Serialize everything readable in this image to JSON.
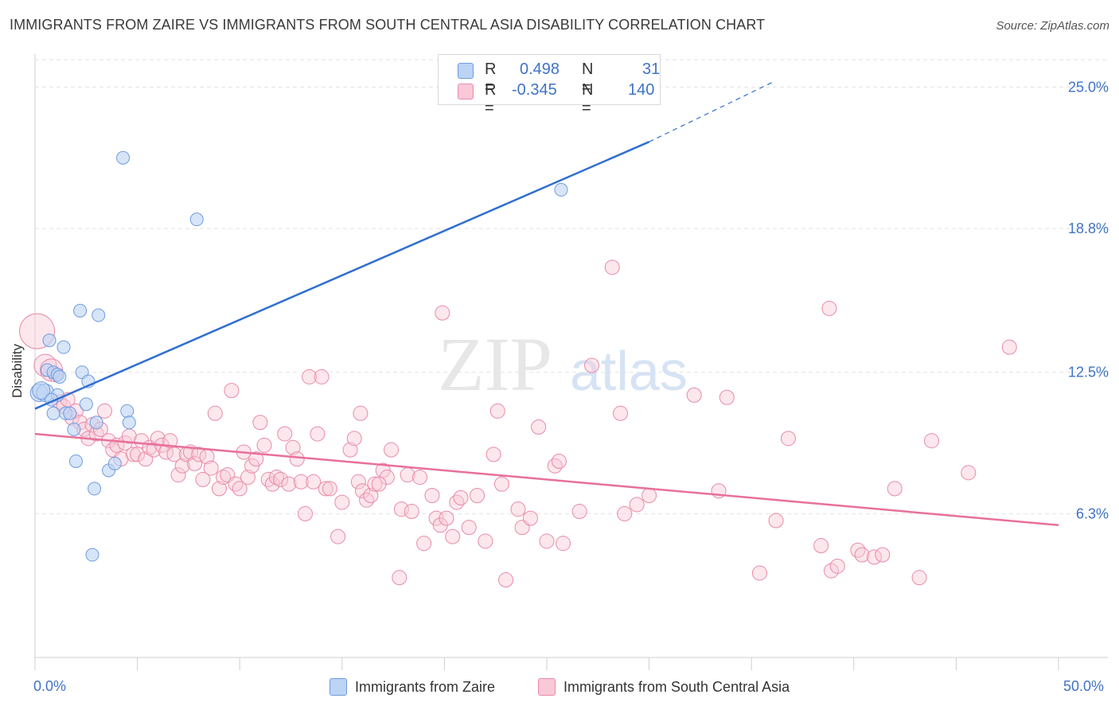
{
  "header": {
    "title": "IMMIGRANTS FROM ZAIRE VS IMMIGRANTS FROM SOUTH CENTRAL ASIA DISABILITY CORRELATION CHART",
    "source": "Source: ZipAtlas.com"
  },
  "watermark": {
    "zip": "ZIP",
    "atlas": "atlas"
  },
  "legend": {
    "r_label": "R =",
    "n_label": "N =",
    "series": [
      {
        "name": "Immigrants from Zaire",
        "r": "0.498",
        "n": "31",
        "fill": "#bcd4f4",
        "stroke": "#6f9be0"
      },
      {
        "name": "Immigrants from South Central Asia",
        "r": "-0.345",
        "n": "140",
        "fill": "#f9c9d7",
        "stroke": "#e88aa8"
      }
    ]
  },
  "colors": {
    "blue_line": "#2f6fd0",
    "pink_line": "#e8709a",
    "tick_label": "#3f73c6",
    "grid": "#e2e2e2"
  },
  "chart_data": {
    "type": "scatter",
    "title": "IMMIGRANTS FROM ZAIRE VS IMMIGRANTS FROM SOUTH CENTRAL ASIA DISABILITY CORRELATION CHART",
    "xlabel": "",
    "ylabel": "Disability",
    "xlim": [
      0,
      50
    ],
    "ylim": [
      0,
      26.2
    ],
    "x_tick_labels": [
      "0.0%",
      "50.0%"
    ],
    "y_ticks": [
      6.3,
      12.5,
      18.8,
      25.0
    ],
    "y_tick_labels": [
      "6.3%",
      "12.5%",
      "18.8%",
      "25.0%"
    ],
    "grid": true,
    "legend_position": "top-center",
    "series": [
      {
        "name": "Immigrants from Zaire",
        "r": 0.498,
        "n": 31,
        "trend": {
          "x0": 0,
          "y0": 10.9,
          "x1": 30,
          "y1": 22.6,
          "dash_x1": 36,
          "dash_y1": 25.2
        },
        "points": [
          [
            0.2,
            11.6
          ],
          [
            0.5,
            11.6
          ],
          [
            0.6,
            12.6
          ],
          [
            0.7,
            13.9
          ],
          [
            0.9,
            10.7
          ],
          [
            0.9,
            12.5
          ],
          [
            1.1,
            11.5
          ],
          [
            1.1,
            12.4
          ],
          [
            1.2,
            12.3
          ],
          [
            1.4,
            13.6
          ],
          [
            1.5,
            10.7
          ],
          [
            1.7,
            10.7
          ],
          [
            1.9,
            10.0
          ],
          [
            2.0,
            8.6
          ],
          [
            2.2,
            15.2
          ],
          [
            2.3,
            12.5
          ],
          [
            2.5,
            11.1
          ],
          [
            2.6,
            12.1
          ],
          [
            2.8,
            4.5
          ],
          [
            2.9,
            7.4
          ],
          [
            3.0,
            10.3
          ],
          [
            3.1,
            15.0
          ],
          [
            3.6,
            8.2
          ],
          [
            3.9,
            8.5
          ],
          [
            4.3,
            21.9
          ],
          [
            4.5,
            10.8
          ],
          [
            4.6,
            10.3
          ],
          [
            7.9,
            19.2
          ],
          [
            0.3,
            11.7
          ],
          [
            0.8,
            11.3
          ],
          [
            25.7,
            20.5
          ]
        ]
      },
      {
        "name": "Immigrants from South Central Asia",
        "r": -0.345,
        "n": 140,
        "trend": {
          "x0": 0,
          "y0": 9.8,
          "x1": 50,
          "y1": 5.8
        },
        "points": [
          [
            0.1,
            14.3
          ],
          [
            0.5,
            12.8
          ],
          [
            0.8,
            12.6
          ],
          [
            1.0,
            12.4
          ],
          [
            1.2,
            11.2
          ],
          [
            1.4,
            11.0
          ],
          [
            1.6,
            11.3
          ],
          [
            1.8,
            10.5
          ],
          [
            2.0,
            10.8
          ],
          [
            2.2,
            10.3
          ],
          [
            2.4,
            10.0
          ],
          [
            2.6,
            9.6
          ],
          [
            2.8,
            10.2
          ],
          [
            3.0,
            9.8
          ],
          [
            3.2,
            10.0
          ],
          [
            3.4,
            10.8
          ],
          [
            3.6,
            9.5
          ],
          [
            3.8,
            9.1
          ],
          [
            4.0,
            9.3
          ],
          [
            4.2,
            8.7
          ],
          [
            4.4,
            9.4
          ],
          [
            4.6,
            9.7
          ],
          [
            4.8,
            8.9
          ],
          [
            5.0,
            8.9
          ],
          [
            5.2,
            9.5
          ],
          [
            5.4,
            8.7
          ],
          [
            5.6,
            9.2
          ],
          [
            5.8,
            9.1
          ],
          [
            6.0,
            9.6
          ],
          [
            6.2,
            9.3
          ],
          [
            6.4,
            9.0
          ],
          [
            6.6,
            9.5
          ],
          [
            6.8,
            8.9
          ],
          [
            7.0,
            8.0
          ],
          [
            7.2,
            8.4
          ],
          [
            7.4,
            8.9
          ],
          [
            7.6,
            9.0
          ],
          [
            7.8,
            8.5
          ],
          [
            8.0,
            8.9
          ],
          [
            8.2,
            7.8
          ],
          [
            8.4,
            8.8
          ],
          [
            8.6,
            8.3
          ],
          [
            8.8,
            10.7
          ],
          [
            9.0,
            7.4
          ],
          [
            9.2,
            7.9
          ],
          [
            9.4,
            8.0
          ],
          [
            9.6,
            11.7
          ],
          [
            9.8,
            7.6
          ],
          [
            10.0,
            7.4
          ],
          [
            10.2,
            9.0
          ],
          [
            10.4,
            7.9
          ],
          [
            10.6,
            8.4
          ],
          [
            10.8,
            8.7
          ],
          [
            11.0,
            10.3
          ],
          [
            11.2,
            9.3
          ],
          [
            11.4,
            7.8
          ],
          [
            11.6,
            7.6
          ],
          [
            11.8,
            7.9
          ],
          [
            12.0,
            7.8
          ],
          [
            12.2,
            9.8
          ],
          [
            12.4,
            7.6
          ],
          [
            12.6,
            9.2
          ],
          [
            12.8,
            8.7
          ],
          [
            13.0,
            7.7
          ],
          [
            13.2,
            6.3
          ],
          [
            13.4,
            12.3
          ],
          [
            13.6,
            7.7
          ],
          [
            13.8,
            9.8
          ],
          [
            14.0,
            12.3
          ],
          [
            14.2,
            7.4
          ],
          [
            14.4,
            7.4
          ],
          [
            14.8,
            5.3
          ],
          [
            15.0,
            6.8
          ],
          [
            15.4,
            9.1
          ],
          [
            15.6,
            9.6
          ],
          [
            15.8,
            7.7
          ],
          [
            16.0,
            7.3
          ],
          [
            16.2,
            6.9
          ],
          [
            16.4,
            7.1
          ],
          [
            16.6,
            7.6
          ],
          [
            17.0,
            8.2
          ],
          [
            17.2,
            7.9
          ],
          [
            17.4,
            9.1
          ],
          [
            17.8,
            3.5
          ],
          [
            17.9,
            6.5
          ],
          [
            18.2,
            8.0
          ],
          [
            18.4,
            6.4
          ],
          [
            18.8,
            7.9
          ],
          [
            19.0,
            5.0
          ],
          [
            19.4,
            7.1
          ],
          [
            19.6,
            6.1
          ],
          [
            19.8,
            5.8
          ],
          [
            20.1,
            6.1
          ],
          [
            20.4,
            5.3
          ],
          [
            20.6,
            6.8
          ],
          [
            20.8,
            7.0
          ],
          [
            21.2,
            5.7
          ],
          [
            21.6,
            7.1
          ],
          [
            22.0,
            5.1
          ],
          [
            22.4,
            8.9
          ],
          [
            22.8,
            7.6
          ],
          [
            23.0,
            3.4
          ],
          [
            23.6,
            6.5
          ],
          [
            23.8,
            5.7
          ],
          [
            24.2,
            6.1
          ],
          [
            24.6,
            10.1
          ],
          [
            25.0,
            5.1
          ],
          [
            25.4,
            8.4
          ],
          [
            25.8,
            5.0
          ],
          [
            26.6,
            6.4
          ],
          [
            27.2,
            12.8
          ],
          [
            28.2,
            17.1
          ],
          [
            28.6,
            10.7
          ],
          [
            28.8,
            6.3
          ],
          [
            29.4,
            6.7
          ],
          [
            30.0,
            7.1
          ],
          [
            32.2,
            11.5
          ],
          [
            33.4,
            7.3
          ],
          [
            35.4,
            3.7
          ],
          [
            36.2,
            6.0
          ],
          [
            38.4,
            4.9
          ],
          [
            38.8,
            15.3
          ],
          [
            38.9,
            3.8
          ],
          [
            39.2,
            4.0
          ],
          [
            40.2,
            4.7
          ],
          [
            40.4,
            4.5
          ],
          [
            41.0,
            4.4
          ],
          [
            41.4,
            4.5
          ],
          [
            42.0,
            7.4
          ],
          [
            43.2,
            3.5
          ],
          [
            43.8,
            9.5
          ],
          [
            45.6,
            8.1
          ],
          [
            47.6,
            13.6
          ],
          [
            19.9,
            15.1
          ],
          [
            36.8,
            9.6
          ],
          [
            33.8,
            11.4
          ],
          [
            25.6,
            8.6
          ],
          [
            15.9,
            10.7
          ],
          [
            22.6,
            10.8
          ],
          [
            16.8,
            7.6
          ]
        ]
      }
    ]
  }
}
